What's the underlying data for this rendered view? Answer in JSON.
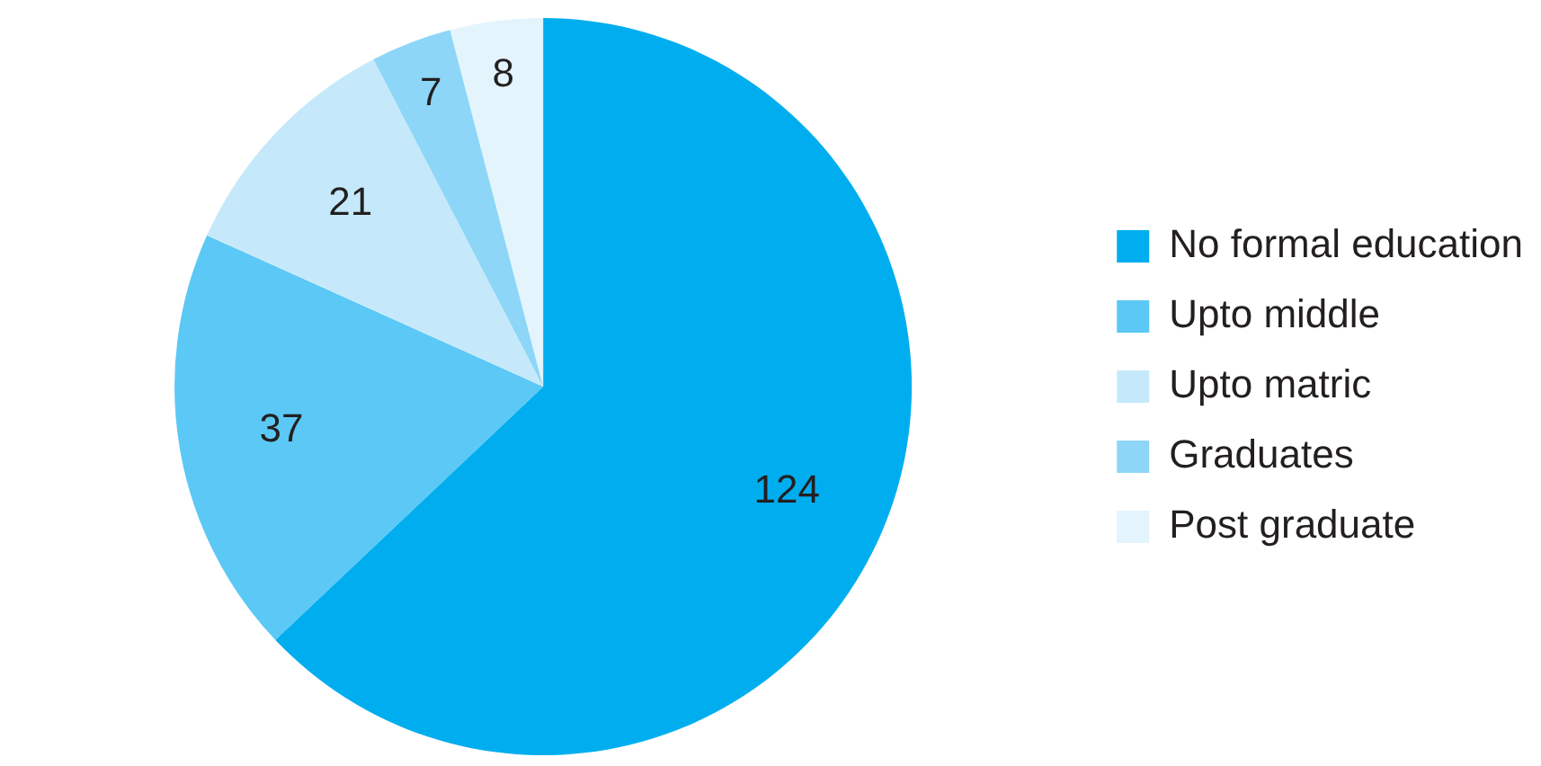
{
  "chart_data": {
    "type": "pie",
    "categories": [
      "No formal education",
      "Upto middle",
      "Upto matric",
      "Graduates",
      "Post graduate"
    ],
    "values": [
      124,
      37,
      21,
      7,
      8
    ],
    "colors": [
      "#00aeef",
      "#5bc8f5",
      "#c5e9fa",
      "#8dd6f7",
      "#e3f4fc"
    ],
    "data_labels": true,
    "legend": "right"
  }
}
